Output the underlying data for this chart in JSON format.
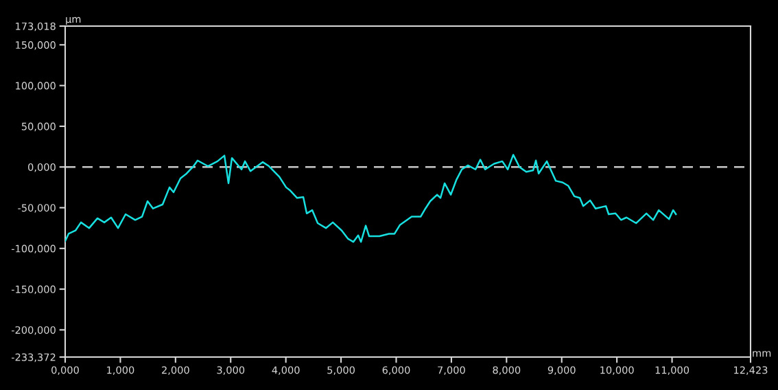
{
  "chart_data": {
    "type": "line",
    "xlabel": "mm",
    "ylabel": "µm",
    "grid": false,
    "legend": false,
    "xlim": [
      0,
      12.423
    ],
    "ylim": [
      -233.372,
      173.018
    ],
    "xticks": [
      {
        "value": 0,
        "label": "0,000"
      },
      {
        "value": 1,
        "label": "1,000"
      },
      {
        "value": 2,
        "label": "2,000"
      },
      {
        "value": 3,
        "label": "3,000"
      },
      {
        "value": 4,
        "label": "4,000"
      },
      {
        "value": 5,
        "label": "5,000"
      },
      {
        "value": 6,
        "label": "6,000"
      },
      {
        "value": 7,
        "label": "7,000"
      },
      {
        "value": 8,
        "label": "8,000"
      },
      {
        "value": 9,
        "label": "9,000"
      },
      {
        "value": 10,
        "label": "10,000"
      },
      {
        "value": 11,
        "label": "11,000"
      },
      {
        "value": 12.423,
        "label": "12,423"
      }
    ],
    "yticks": [
      {
        "value": -233.372,
        "label": "-233,372"
      },
      {
        "value": -200,
        "label": "-200,000"
      },
      {
        "value": -150,
        "label": "-150,000"
      },
      {
        "value": -100,
        "label": "-100,000"
      },
      {
        "value": -50,
        "label": "-50,000"
      },
      {
        "value": 0,
        "label": "0,000"
      },
      {
        "value": 50,
        "label": "50,000"
      },
      {
        "value": 100,
        "label": "100,000"
      },
      {
        "value": 150,
        "label": "150,000"
      },
      {
        "value": 173.018,
        "label": "173,018"
      }
    ],
    "ref_lines": [
      {
        "axis": "y",
        "value": 0,
        "color": "#c8c8c8",
        "line_style": "dashed"
      }
    ],
    "series": [
      {
        "color": "#19e0e0",
        "x": [
          0,
          0.062,
          0.187,
          0.286,
          0.435,
          0.585,
          0.709,
          0.833,
          0.958,
          1.095,
          1.269,
          1.393,
          1.493,
          1.592,
          1.766,
          1.891,
          1.965,
          2.09,
          2.201,
          2.326,
          2.4,
          2.587,
          2.761,
          2.886,
          2.96,
          3.022,
          3.197,
          3.259,
          3.358,
          3.582,
          3.694,
          3.881,
          4.005,
          4.08,
          4.204,
          4.316,
          4.378,
          4.478,
          4.577,
          4.726,
          4.851,
          5.012,
          5.124,
          5.224,
          5.311,
          5.361,
          5.448,
          5.51,
          5.697,
          5.871,
          5.97,
          6.07,
          6.281,
          6.443,
          6.53,
          6.617,
          6.741,
          6.803,
          6.878,
          6.99,
          7.09,
          7.189,
          7.301,
          7.438,
          7.525,
          7.612,
          7.774,
          7.923,
          8.022,
          8.122,
          8.234,
          8.358,
          8.483,
          8.532,
          8.582,
          8.731,
          8.893,
          9.017,
          9.117,
          9.229,
          9.328,
          9.391,
          9.515,
          9.614,
          9.801,
          9.851,
          9.975,
          10.075,
          10.174,
          10.348,
          10.535,
          10.659,
          10.759,
          10.945,
          11.02,
          11.07
        ],
        "values": [
          -91,
          -82,
          -78,
          -68,
          -75,
          -63,
          -68,
          -62,
          -75,
          -58,
          -65,
          -61,
          -42,
          -51,
          -46,
          -25,
          -31,
          -14,
          -8,
          1,
          8,
          1,
          7,
          14,
          -20,
          11,
          -3,
          7,
          -5,
          6,
          1,
          -12,
          -25,
          -29,
          -38,
          -37,
          -57,
          -53,
          -69,
          -75,
          -68,
          -78,
          -88,
          -92,
          -84,
          -92,
          -72,
          -85,
          -85,
          -82,
          -82,
          -71,
          -61,
          -61,
          -51,
          -42,
          -34,
          -38,
          -20,
          -34,
          -16,
          -3,
          2,
          -3,
          9,
          -3,
          4,
          7,
          -3,
          15,
          0,
          -6,
          -4,
          8,
          -8,
          7,
          -17,
          -19,
          -23,
          -36,
          -38,
          -48,
          -41,
          -51,
          -48,
          -58,
          -57,
          -65,
          -62,
          -69,
          -57,
          -65,
          -53,
          -64,
          -53,
          -58
        ]
      }
    ]
  }
}
